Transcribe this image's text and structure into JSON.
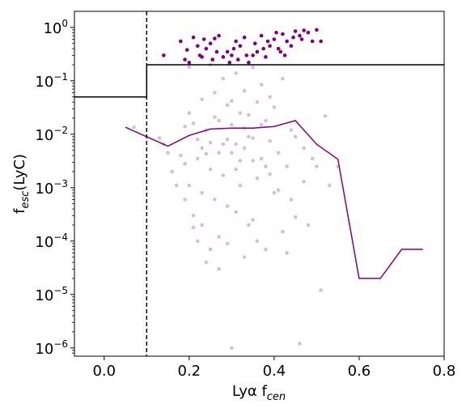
{
  "chart_data": {
    "type": "scatter",
    "xlabel": "Lyα f_cen",
    "ylabel": "f_esc(LyC)",
    "xlim": [
      -0.07,
      0.8
    ],
    "ylim": [
      7e-07,
      2.0
    ],
    "yscale": "log",
    "grid": false,
    "x_ticks": [
      0.0,
      0.2,
      0.4,
      0.6,
      0.8
    ],
    "x_tick_labels": [
      "0.0",
      "0.2",
      "0.4",
      "0.6",
      "0.8"
    ],
    "y_ticks": [
      1e-06,
      1e-05,
      0.0001,
      0.001,
      0.01,
      0.1,
      1
    ],
    "y_tick_labels": [
      {
        "base": "10",
        "exp": "−6"
      },
      {
        "base": "10",
        "exp": "−5"
      },
      {
        "base": "10",
        "exp": "−4"
      },
      {
        "base": "10",
        "exp": "−3"
      },
      {
        "base": "10",
        "exp": "−2"
      },
      {
        "base": "10",
        "exp": "−1"
      },
      {
        "base": "10",
        "exp": "0"
      }
    ],
    "colors": {
      "strong": "#800080",
      "faint": "#d8bfd8",
      "median": "#800080",
      "threshold": "#000000"
    },
    "cutoff_line": {
      "x": 0.1
    },
    "threshold_step": [
      [
        -0.07,
        0.05
      ],
      [
        0.1,
        0.05
      ],
      [
        0.1,
        0.2
      ],
      [
        0.8,
        0.2
      ]
    ],
    "median_line": [
      [
        0.05,
        0.0135
      ],
      [
        0.1,
        0.009
      ],
      [
        0.15,
        0.006
      ],
      [
        0.2,
        0.0095
      ],
      [
        0.25,
        0.0125
      ],
      [
        0.3,
        0.013
      ],
      [
        0.35,
        0.013
      ],
      [
        0.4,
        0.014
      ],
      [
        0.45,
        0.018
      ],
      [
        0.5,
        0.0065
      ],
      [
        0.55,
        0.0034
      ],
      [
        0.6,
        2e-05
      ],
      [
        0.65,
        2e-05
      ],
      [
        0.7,
        7e-05
      ],
      [
        0.75,
        7e-05
      ]
    ],
    "series": [
      {
        "values": [
          [
            0.14,
            0.3
          ],
          [
            0.18,
            0.55
          ],
          [
            0.19,
            0.25
          ],
          [
            0.195,
            0.38
          ],
          [
            0.2,
            0.22
          ],
          [
            0.21,
            0.65
          ],
          [
            0.22,
            0.45
          ],
          [
            0.225,
            0.3
          ],
          [
            0.23,
            0.28
          ],
          [
            0.235,
            0.6
          ],
          [
            0.24,
            0.4
          ],
          [
            0.25,
            0.5
          ],
          [
            0.255,
            0.25
          ],
          [
            0.26,
            0.62
          ],
          [
            0.265,
            0.35
          ],
          [
            0.27,
            0.7
          ],
          [
            0.28,
            0.28
          ],
          [
            0.29,
            0.35
          ],
          [
            0.295,
            0.22
          ],
          [
            0.3,
            0.3
          ],
          [
            0.305,
            0.4
          ],
          [
            0.31,
            0.55
          ],
          [
            0.315,
            0.25
          ],
          [
            0.32,
            0.45
          ],
          [
            0.33,
            0.65
          ],
          [
            0.335,
            0.3
          ],
          [
            0.34,
            0.22
          ],
          [
            0.35,
            0.3
          ],
          [
            0.355,
            0.5
          ],
          [
            0.36,
            0.35
          ],
          [
            0.37,
            0.7
          ],
          [
            0.375,
            0.4
          ],
          [
            0.38,
            0.28
          ],
          [
            0.385,
            0.55
          ],
          [
            0.39,
            0.45
          ],
          [
            0.4,
            0.6
          ],
          [
            0.405,
            0.8
          ],
          [
            0.41,
            0.4
          ],
          [
            0.415,
            0.35
          ],
          [
            0.42,
            0.75
          ],
          [
            0.425,
            0.3
          ],
          [
            0.43,
            0.55
          ],
          [
            0.44,
            0.45
          ],
          [
            0.445,
            0.65
          ],
          [
            0.45,
            0.85
          ],
          [
            0.46,
            0.7
          ],
          [
            0.465,
            0.6
          ],
          [
            0.47,
            0.88
          ],
          [
            0.48,
            0.8
          ],
          [
            0.49,
            0.55
          ],
          [
            0.5,
            0.9
          ],
          [
            0.51,
            0.55
          ]
        ]
      },
      {
        "values": [
          [
            0.07,
            0.0135
          ],
          [
            0.13,
            0.0085
          ],
          [
            0.14,
            0.0065
          ],
          [
            0.15,
            0.0045
          ],
          [
            0.16,
            0.002
          ],
          [
            0.17,
            0.0011
          ],
          [
            0.18,
            0.004
          ],
          [
            0.19,
            0.0006
          ],
          [
            0.19,
            0.014
          ],
          [
            0.2,
            0.025
          ],
          [
            0.2,
            0.0011
          ],
          [
            0.21,
            0.00018
          ],
          [
            0.22,
            0.0001
          ],
          [
            0.22,
            0.0035
          ],
          [
            0.23,
            0.045
          ],
          [
            0.23,
            0.0008
          ],
          [
            0.24,
            0.012
          ],
          [
            0.24,
            4e-05
          ],
          [
            0.25,
            0.2
          ],
          [
            0.25,
            0.0022
          ],
          [
            0.26,
            0.06
          ],
          [
            0.26,
            0.0006
          ],
          [
            0.27,
            0.018
          ],
          [
            0.27,
            3e-05
          ],
          [
            0.28,
            0.11
          ],
          [
            0.28,
            0.0017
          ],
          [
            0.29,
            0.035
          ],
          [
            0.29,
            9e-05
          ],
          [
            0.3,
            0.0045
          ],
          [
            0.3,
            1e-06
          ],
          [
            0.31,
            0.14
          ],
          [
            0.31,
            0.00035
          ],
          [
            0.32,
            0.025
          ],
          [
            0.32,
            0.0011
          ],
          [
            0.33,
            0.065
          ],
          [
            0.33,
            5e-05
          ],
          [
            0.34,
            0.009
          ],
          [
            0.34,
            0.0002
          ],
          [
            0.35,
            0.18
          ],
          [
            0.35,
            0.0032
          ],
          [
            0.36,
            0.04
          ],
          [
            0.36,
            0.0001
          ],
          [
            0.37,
            0.015
          ],
          [
            0.38,
            0.0025
          ],
          [
            0.38,
            7e-05
          ],
          [
            0.39,
            0.05
          ],
          [
            0.4,
            0.0008
          ],
          [
            0.41,
            0.0045
          ],
          [
            0.42,
            0.11
          ],
          [
            0.42,
            0.00015
          ],
          [
            0.43,
            0.0025
          ],
          [
            0.44,
            0.0006
          ],
          [
            0.45,
            0.009
          ],
          [
            0.46,
            1.2e-06
          ],
          [
            0.47,
            0.0013
          ],
          [
            0.48,
            0.0002
          ],
          [
            0.49,
            0.0035
          ],
          [
            0.5,
            0.0025
          ],
          [
            0.51,
            1.2e-05
          ],
          [
            0.52,
            0.022
          ],
          [
            0.53,
            0.0011
          ],
          [
            0.55,
            0.0025
          ],
          [
            0.2,
            0.18
          ],
          [
            0.22,
            0.008
          ],
          [
            0.21,
            0.0003
          ],
          [
            0.23,
            0.0002
          ],
          [
            0.25,
            7e-05
          ],
          [
            0.27,
            0.00012
          ],
          [
            0.29,
            0.00045
          ],
          [
            0.31,
            0.0065
          ],
          [
            0.33,
            0.013
          ],
          [
            0.35,
            0.00025
          ],
          [
            0.37,
            0.085
          ],
          [
            0.39,
            0.0018
          ],
          [
            0.41,
            0.0009
          ],
          [
            0.43,
            6e-05
          ],
          [
            0.45,
            0.00028
          ],
          [
            0.47,
            0.0055
          ],
          [
            0.36,
            0.0015
          ],
          [
            0.28,
            0.0065
          ],
          [
            0.26,
            0.021
          ],
          [
            0.24,
            0.0043
          ],
          [
            0.3,
            0.042
          ],
          [
            0.32,
            0.0032
          ],
          [
            0.34,
            0.023
          ],
          [
            0.38,
            0.018
          ],
          [
            0.4,
            0.032
          ],
          [
            0.44,
            0.012
          ],
          [
            0.3,
            0.015
          ],
          [
            0.27,
            0.0045
          ],
          [
            0.33,
            0.0055
          ],
          [
            0.29,
            0.008
          ],
          [
            0.35,
            0.0085
          ],
          [
            0.25,
            0.007
          ],
          [
            0.31,
            0.0022
          ],
          [
            0.37,
            0.0035
          ],
          [
            0.39,
            0.0075
          ],
          [
            0.23,
            0.0055
          ],
          [
            0.21,
            0.016
          ],
          [
            0.19,
            0.0028
          ]
        ]
      }
    ]
  }
}
